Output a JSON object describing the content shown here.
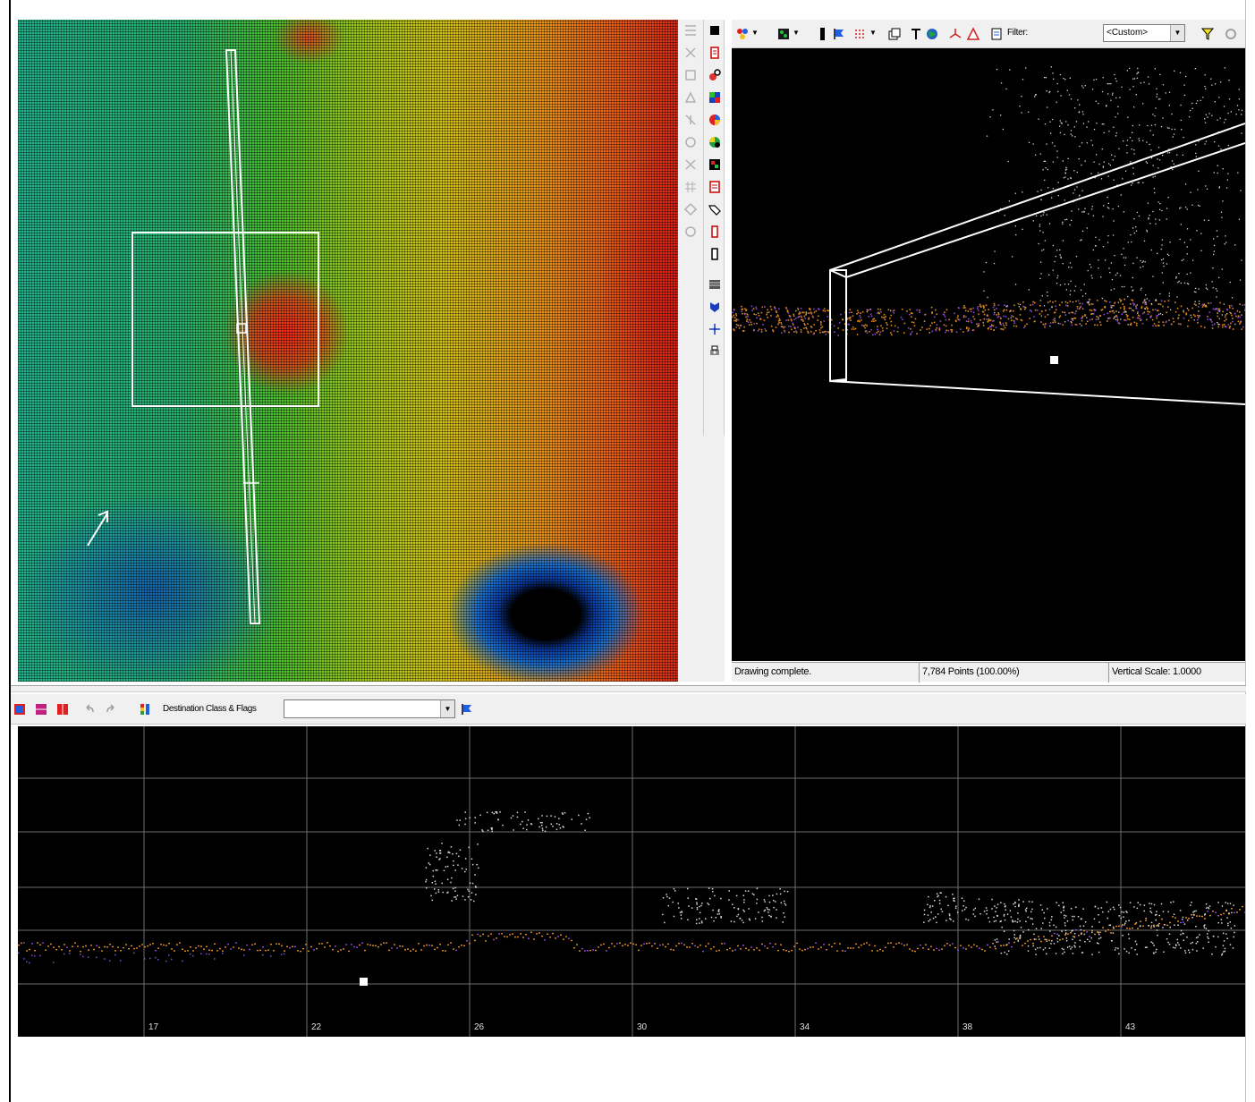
{
  "toolbar_3d": {
    "filter_label": "Filter:",
    "filter_value": "<Custom>"
  },
  "status": {
    "message": "Drawing complete.",
    "points": "7,784 Points (100.00%)",
    "vertical_scale": "Vertical Scale: 1.0000"
  },
  "cross_section_toolbar": {
    "destination_label": "Destination Class & Flags",
    "destination_value": ""
  },
  "cross_section": {
    "axis_labels": [
      "17",
      "22",
      "26",
      "30",
      "34",
      "38",
      "43"
    ]
  },
  "colors": {
    "ground_points": "#e08a20",
    "low_points": "#8a4ad8",
    "vegetation_points": "#d8d8d8",
    "grid": "#6e6e6e"
  }
}
